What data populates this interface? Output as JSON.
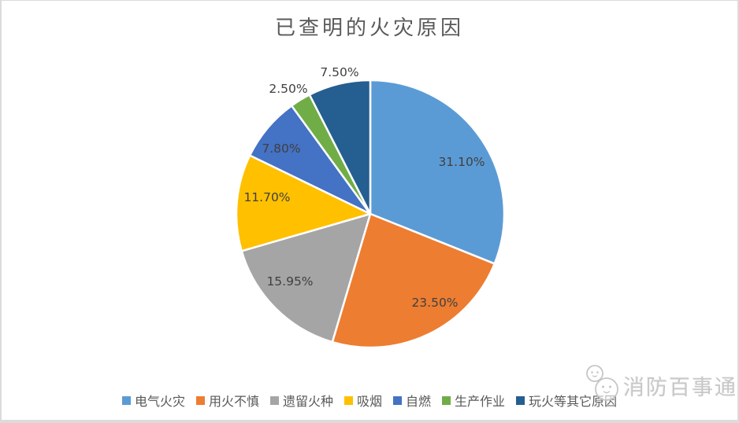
{
  "chart_data": {
    "type": "pie",
    "title": "已查明的火灾原因",
    "categories": [
      "电气火灾",
      "用火不慎",
      "遗留火种",
      "吸烟",
      "自燃",
      "生产作业",
      "玩火等其它原因"
    ],
    "values": [
      31.1,
      23.5,
      15.95,
      11.7,
      7.8,
      2.5,
      7.5
    ],
    "labels": [
      "31.10%",
      "23.50%",
      "15.95%",
      "11.70%",
      "7.80%",
      "2.50%",
      "7.50%"
    ],
    "colors": [
      "#5B9BD5",
      "#ED7D31",
      "#A5A5A5",
      "#FFC000",
      "#4472C4",
      "#70AD47",
      "#255E91"
    ],
    "start_angle": 0,
    "direction": "clockwise",
    "legend_position": "bottom",
    "slice_border_color": "#FFFFFF",
    "title_color": "#595959",
    "label_color": "#404040"
  },
  "watermark": {
    "text": "消防百事通"
  }
}
